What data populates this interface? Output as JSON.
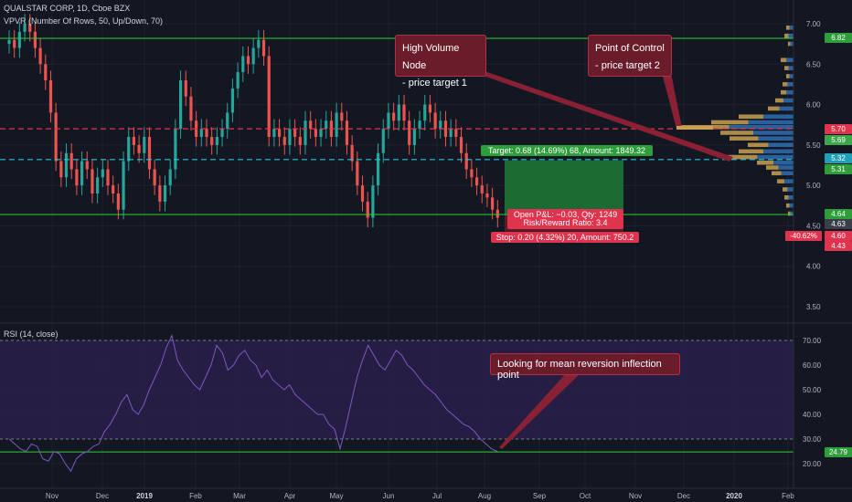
{
  "title": {
    "symbol_line": "QUALSTAR CORP, 1D, Cboe BZX",
    "vpvr_line": "VPVR (Number Of Rows, 50, Up/Down, 70)",
    "rsi_line": "RSI (14, close)"
  },
  "price_axis": {
    "ticks": [
      "7.00",
      "6.50",
      "6.00",
      "5.50",
      "5.00",
      "4.50",
      "4.00",
      "3.50"
    ]
  },
  "rsi_axis": {
    "ticks": [
      "70.00",
      "60.00",
      "50.00",
      "40.00",
      "30.00",
      "20.00"
    ]
  },
  "time_axis": {
    "ticks": [
      "Nov",
      "Dec",
      "2019",
      "Feb",
      "Mar",
      "Apr",
      "May",
      "Jun",
      "Jul",
      "Aug",
      "Sep",
      "Oct",
      "Nov",
      "Dec",
      "2020",
      "Feb"
    ]
  },
  "price_badges": [
    {
      "text": "6.82",
      "color": "#2e9e3a"
    },
    {
      "text": "5.70",
      "color": "#e0334d"
    },
    {
      "text": "5.69",
      "color": "#3aa84a"
    },
    {
      "text": "5.32",
      "color": "#1fa0b8"
    },
    {
      "text": "5.31",
      "color": "#2e9e3a"
    },
    {
      "text": "4.64",
      "color": "#2e9e3a"
    },
    {
      "text": "4.63",
      "color": "#3b3f4a"
    },
    {
      "text": "4.60",
      "color": "#e0334d"
    },
    {
      "text": "4.43",
      "color": "#e0334d"
    }
  ],
  "pct_badge": "-40.62%",
  "rsi_badge": "24.79",
  "annotations": {
    "hvn_line1": "High Volume Node",
    "hvn_line2": "- price target 1",
    "poc_line1": "Point of Control",
    "poc_line2": "- price target 2",
    "rsi_note": "Looking for mean reversion inflection point"
  },
  "position": {
    "target": "Target: 0.68 (14.69%) 68, Amount: 1849.32",
    "open_pnl": "Open P&L: −0.03, Qty: 1249",
    "risk_reward": "Risk/Reward Ratio: 3.4",
    "stop": "Stop: 0.20 (4.32%) 20, Amount: 750.2"
  },
  "levels": {
    "resistance": 6.82,
    "poc": 5.7,
    "hvn": 5.32,
    "support": 4.64,
    "entry": 4.63,
    "target": 5.31,
    "stop": 4.43,
    "rsi_upper": 70,
    "rsi_lower": 30,
    "rsi_support": 24.79
  },
  "colors": {
    "up": "#26a69a",
    "down": "#ef5350",
    "green_line": "#32cd32",
    "poc_line": "#e0334d",
    "hvn_line": "#26c6da",
    "rsi_line": "#7e57c2",
    "rsi_band": "#2a1e4a"
  },
  "chart_data": {
    "type": "candlestick",
    "symbol": "QUALSTAR CORP",
    "interval": "1D",
    "close_series_approx": [
      6.8,
      6.7,
      6.9,
      7.0,
      6.9,
      6.7,
      6.5,
      6.3,
      5.9,
      5.3,
      5.1,
      5.4,
      5.2,
      5.0,
      5.3,
      5.2,
      4.9,
      5.1,
      5.2,
      5.0,
      4.9,
      4.7,
      5.3,
      5.6,
      5.5,
      5.4,
      5.6,
      5.2,
      5.0,
      4.8,
      5.0,
      5.2,
      5.7,
      6.3,
      6.1,
      5.8,
      5.6,
      5.7,
      5.6,
      5.5,
      5.6,
      5.7,
      5.9,
      6.2,
      6.4,
      6.6,
      6.5,
      6.7,
      6.8,
      6.6,
      5.6,
      5.7,
      5.6,
      5.5,
      5.7,
      5.6,
      5.5,
      5.8,
      5.7,
      5.6,
      5.7,
      5.8,
      5.6,
      5.9,
      5.8,
      5.5,
      5.3,
      5.0,
      4.8,
      4.6,
      5.0,
      5.4,
      5.7,
      5.9,
      5.8,
      6.0,
      5.8,
      5.5,
      5.7,
      5.8,
      6.0,
      5.9,
      5.7,
      5.8,
      5.6,
      5.7,
      5.6,
      5.4,
      5.2,
      5.1,
      5.0,
      4.9,
      4.85,
      4.7,
      4.6
    ],
    "rsi_series_approx": [
      30,
      28,
      26,
      25,
      28,
      27,
      22,
      21,
      25,
      24,
      20,
      17,
      22,
      24,
      25,
      27,
      28,
      33,
      36,
      40,
      45,
      48,
      42,
      40,
      44,
      50,
      55,
      60,
      67,
      72,
      62,
      58,
      55,
      52,
      50,
      55,
      60,
      68,
      65,
      58,
      60,
      64,
      66,
      62,
      60,
      55,
      58,
      54,
      52,
      50,
      52,
      48,
      46,
      44,
      42,
      40,
      40,
      36,
      34,
      26,
      35,
      45,
      55,
      62,
      68,
      64,
      60,
      58,
      62,
      66,
      64,
      60,
      58,
      55,
      52,
      50,
      48,
      45,
      42,
      40,
      38,
      36,
      35,
      33,
      30,
      28,
      26,
      25
    ]
  }
}
